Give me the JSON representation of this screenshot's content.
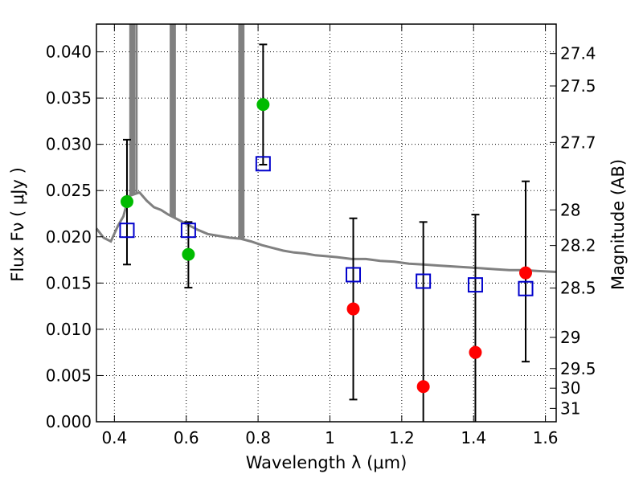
{
  "chart_data": {
    "type": "scatter",
    "title": "",
    "xlabel": "Wavelength  λ (μm)",
    "ylabel": "Flux  Fν  ( μJy )",
    "y2label": "Magnitude (AB)",
    "xlim": [
      0.35,
      1.63
    ],
    "ylim": [
      0.0,
      0.043
    ],
    "grid": true,
    "x_ticks": [
      {
        "value": 0.4,
        "label": "0.4"
      },
      {
        "value": 0.6,
        "label": "0.6"
      },
      {
        "value": 0.8,
        "label": "0.8"
      },
      {
        "value": 1.0,
        "label": "1"
      },
      {
        "value": 1.2,
        "label": "1.2"
      },
      {
        "value": 1.4,
        "label": "1.4"
      },
      {
        "value": 1.6,
        "label": "1.6"
      }
    ],
    "y_ticks": [
      {
        "value": 0.0,
        "label": "0.000"
      },
      {
        "value": 0.005,
        "label": "0.005"
      },
      {
        "value": 0.01,
        "label": "0.010"
      },
      {
        "value": 0.015,
        "label": "0.015"
      },
      {
        "value": 0.02,
        "label": "0.020"
      },
      {
        "value": 0.025,
        "label": "0.025"
      },
      {
        "value": 0.03,
        "label": "0.030"
      },
      {
        "value": 0.035,
        "label": "0.035"
      },
      {
        "value": 0.04,
        "label": "0.040"
      }
    ],
    "y2_ticks": [
      {
        "value": 27.4,
        "label": "27.4"
      },
      {
        "value": 27.5,
        "label": "27.5"
      },
      {
        "value": 27.7,
        "label": "27.7"
      },
      {
        "value": 28.0,
        "label": "28"
      },
      {
        "value": 28.2,
        "label": "28.2"
      },
      {
        "value": 28.5,
        "label": "28.5"
      },
      {
        "value": 29.0,
        "label": "29"
      },
      {
        "value": 29.5,
        "label": "29.5"
      },
      {
        "value": 30.0,
        "label": "30"
      },
      {
        "value": 31.0,
        "label": "31"
      }
    ],
    "series": [
      {
        "name": "observed_detected",
        "marker": "circle",
        "color": "#00bb00",
        "points": [
          {
            "x": 0.435,
            "y": 0.0238
          },
          {
            "x": 0.606,
            "y": 0.0181
          },
          {
            "x": 0.814,
            "y": 0.0343
          }
        ]
      },
      {
        "name": "observed_nondetected",
        "marker": "circle",
        "color": "#ff0000",
        "points": [
          {
            "x": 1.065,
            "y": 0.0122
          },
          {
            "x": 1.26,
            "y": 0.0038
          },
          {
            "x": 1.405,
            "y": 0.0075
          },
          {
            "x": 1.545,
            "y": 0.0161
          }
        ]
      },
      {
        "name": "model_photometry",
        "marker": "open-square",
        "color": "#0000cc",
        "points": [
          {
            "x": 0.435,
            "y": 0.0207,
            "yerr_low": 0.017,
            "yerr_high": 0.0305
          },
          {
            "x": 0.606,
            "y": 0.0207,
            "yerr_low": 0.0145,
            "yerr_high": 0.0216
          },
          {
            "x": 0.814,
            "y": 0.0279,
            "yerr_low": 0.0278,
            "yerr_high": 0.0408
          },
          {
            "x": 1.065,
            "y": 0.0159,
            "yerr_low": 0.0024,
            "yerr_high": 0.022
          },
          {
            "x": 1.26,
            "y": 0.0152,
            "yerr_low": 0.0,
            "yerr_high": 0.0216
          },
          {
            "x": 1.405,
            "y": 0.0148,
            "yerr_low": 0.0,
            "yerr_high": 0.0224
          },
          {
            "x": 1.545,
            "y": 0.0144,
            "yerr_low": 0.0065,
            "yerr_high": 0.026
          }
        ]
      },
      {
        "name": "template_spectrum",
        "marker": "line",
        "color": "#808080",
        "points": [
          {
            "x": 0.35,
            "y": 0.0209
          },
          {
            "x": 0.37,
            "y": 0.0199
          },
          {
            "x": 0.39,
            "y": 0.0195
          },
          {
            "x": 0.41,
            "y": 0.0212
          },
          {
            "x": 0.425,
            "y": 0.0222
          },
          {
            "x": 0.44,
            "y": 0.0244
          },
          {
            "x": 0.455,
            "y": 0.0246
          },
          {
            "x": 0.47,
            "y": 0.0248
          },
          {
            "x": 0.49,
            "y": 0.0239
          },
          {
            "x": 0.51,
            "y": 0.0232
          },
          {
            "x": 0.53,
            "y": 0.0229
          },
          {
            "x": 0.55,
            "y": 0.0224
          },
          {
            "x": 0.58,
            "y": 0.0218
          },
          {
            "x": 0.6,
            "y": 0.0214
          },
          {
            "x": 0.63,
            "y": 0.0208
          },
          {
            "x": 0.66,
            "y": 0.0203
          },
          {
            "x": 0.69,
            "y": 0.0201
          },
          {
            "x": 0.72,
            "y": 0.0199
          },
          {
            "x": 0.75,
            "y": 0.0198
          },
          {
            "x": 0.78,
            "y": 0.0195
          },
          {
            "x": 0.81,
            "y": 0.0191
          },
          {
            "x": 0.84,
            "y": 0.0188
          },
          {
            "x": 0.87,
            "y": 0.0185
          },
          {
            "x": 0.9,
            "y": 0.0183
          },
          {
            "x": 0.93,
            "y": 0.0182
          },
          {
            "x": 0.96,
            "y": 0.018
          },
          {
            "x": 0.99,
            "y": 0.0179
          },
          {
            "x": 1.02,
            "y": 0.0178
          },
          {
            "x": 1.06,
            "y": 0.0176
          },
          {
            "x": 1.1,
            "y": 0.0176
          },
          {
            "x": 1.14,
            "y": 0.0174
          },
          {
            "x": 1.18,
            "y": 0.0173
          },
          {
            "x": 1.22,
            "y": 0.0171
          },
          {
            "x": 1.26,
            "y": 0.017
          },
          {
            "x": 1.3,
            "y": 0.0169
          },
          {
            "x": 1.34,
            "y": 0.0168
          },
          {
            "x": 1.38,
            "y": 0.0167
          },
          {
            "x": 1.42,
            "y": 0.0166
          },
          {
            "x": 1.46,
            "y": 0.0165
          },
          {
            "x": 1.5,
            "y": 0.0164
          },
          {
            "x": 1.54,
            "y": 0.0164
          },
          {
            "x": 1.58,
            "y": 0.0163
          },
          {
            "x": 1.63,
            "y": 0.0162
          }
        ],
        "emission_lines": [
          {
            "x": 0.444
          },
          {
            "x": 0.448
          },
          {
            "x": 0.452
          },
          {
            "x": 0.456
          },
          {
            "x": 0.462
          },
          {
            "x": 0.5565
          },
          {
            "x": 0.5605
          },
          {
            "x": 0.5645
          },
          {
            "x": 0.5685
          },
          {
            "x": 0.7475
          },
          {
            "x": 0.7515
          },
          {
            "x": 0.7555
          },
          {
            "x": 0.7595
          }
        ]
      }
    ]
  }
}
